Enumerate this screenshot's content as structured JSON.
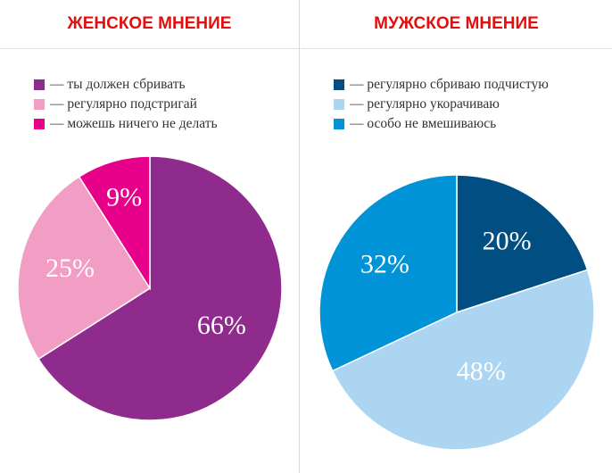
{
  "headers": {
    "left": "ЖЕНСКОЕ МНЕНИЕ",
    "right": "МУЖСКОЕ МНЕНИЕ"
  },
  "legend_left": [
    {
      "label": "— ты должен сбривать",
      "color": "#8e2b8c"
    },
    {
      "label": "— регулярно подстригай",
      "color": "#f29dc3"
    },
    {
      "label": "— можешь ничего не делать",
      "color": "#e8008a"
    }
  ],
  "legend_right": [
    {
      "label": "— регулярно сбриваю подчистую",
      "color": "#004e82"
    },
    {
      "label": "— регулярно укорачиваю",
      "color": "#acd5f2"
    },
    {
      "label": "— особо не вмешиваюсь",
      "color": "#0093d8"
    }
  ],
  "chart_data": [
    {
      "type": "pie",
      "title": "ЖЕНСКОЕ МНЕНИЕ",
      "categories": [
        "ты должен сбривать",
        "регулярно подстригай",
        "можешь ничего не делать"
      ],
      "values": [
        66,
        25,
        9
      ],
      "labels": [
        "66%",
        "25%",
        "9%"
      ],
      "colors": [
        "#8e2b8c",
        "#f29dc3",
        "#e8008a"
      ]
    },
    {
      "type": "pie",
      "title": "МУЖСКОЕ МНЕНИЕ",
      "categories": [
        "регулярно сбриваю подчистую",
        "регулярно укорачиваю",
        "особо не вмешиваюсь"
      ],
      "values": [
        20,
        48,
        32
      ],
      "labels": [
        "20%",
        "48%",
        "32%"
      ],
      "colors": [
        "#004e82",
        "#acd5f2",
        "#0093d8"
      ]
    }
  ]
}
